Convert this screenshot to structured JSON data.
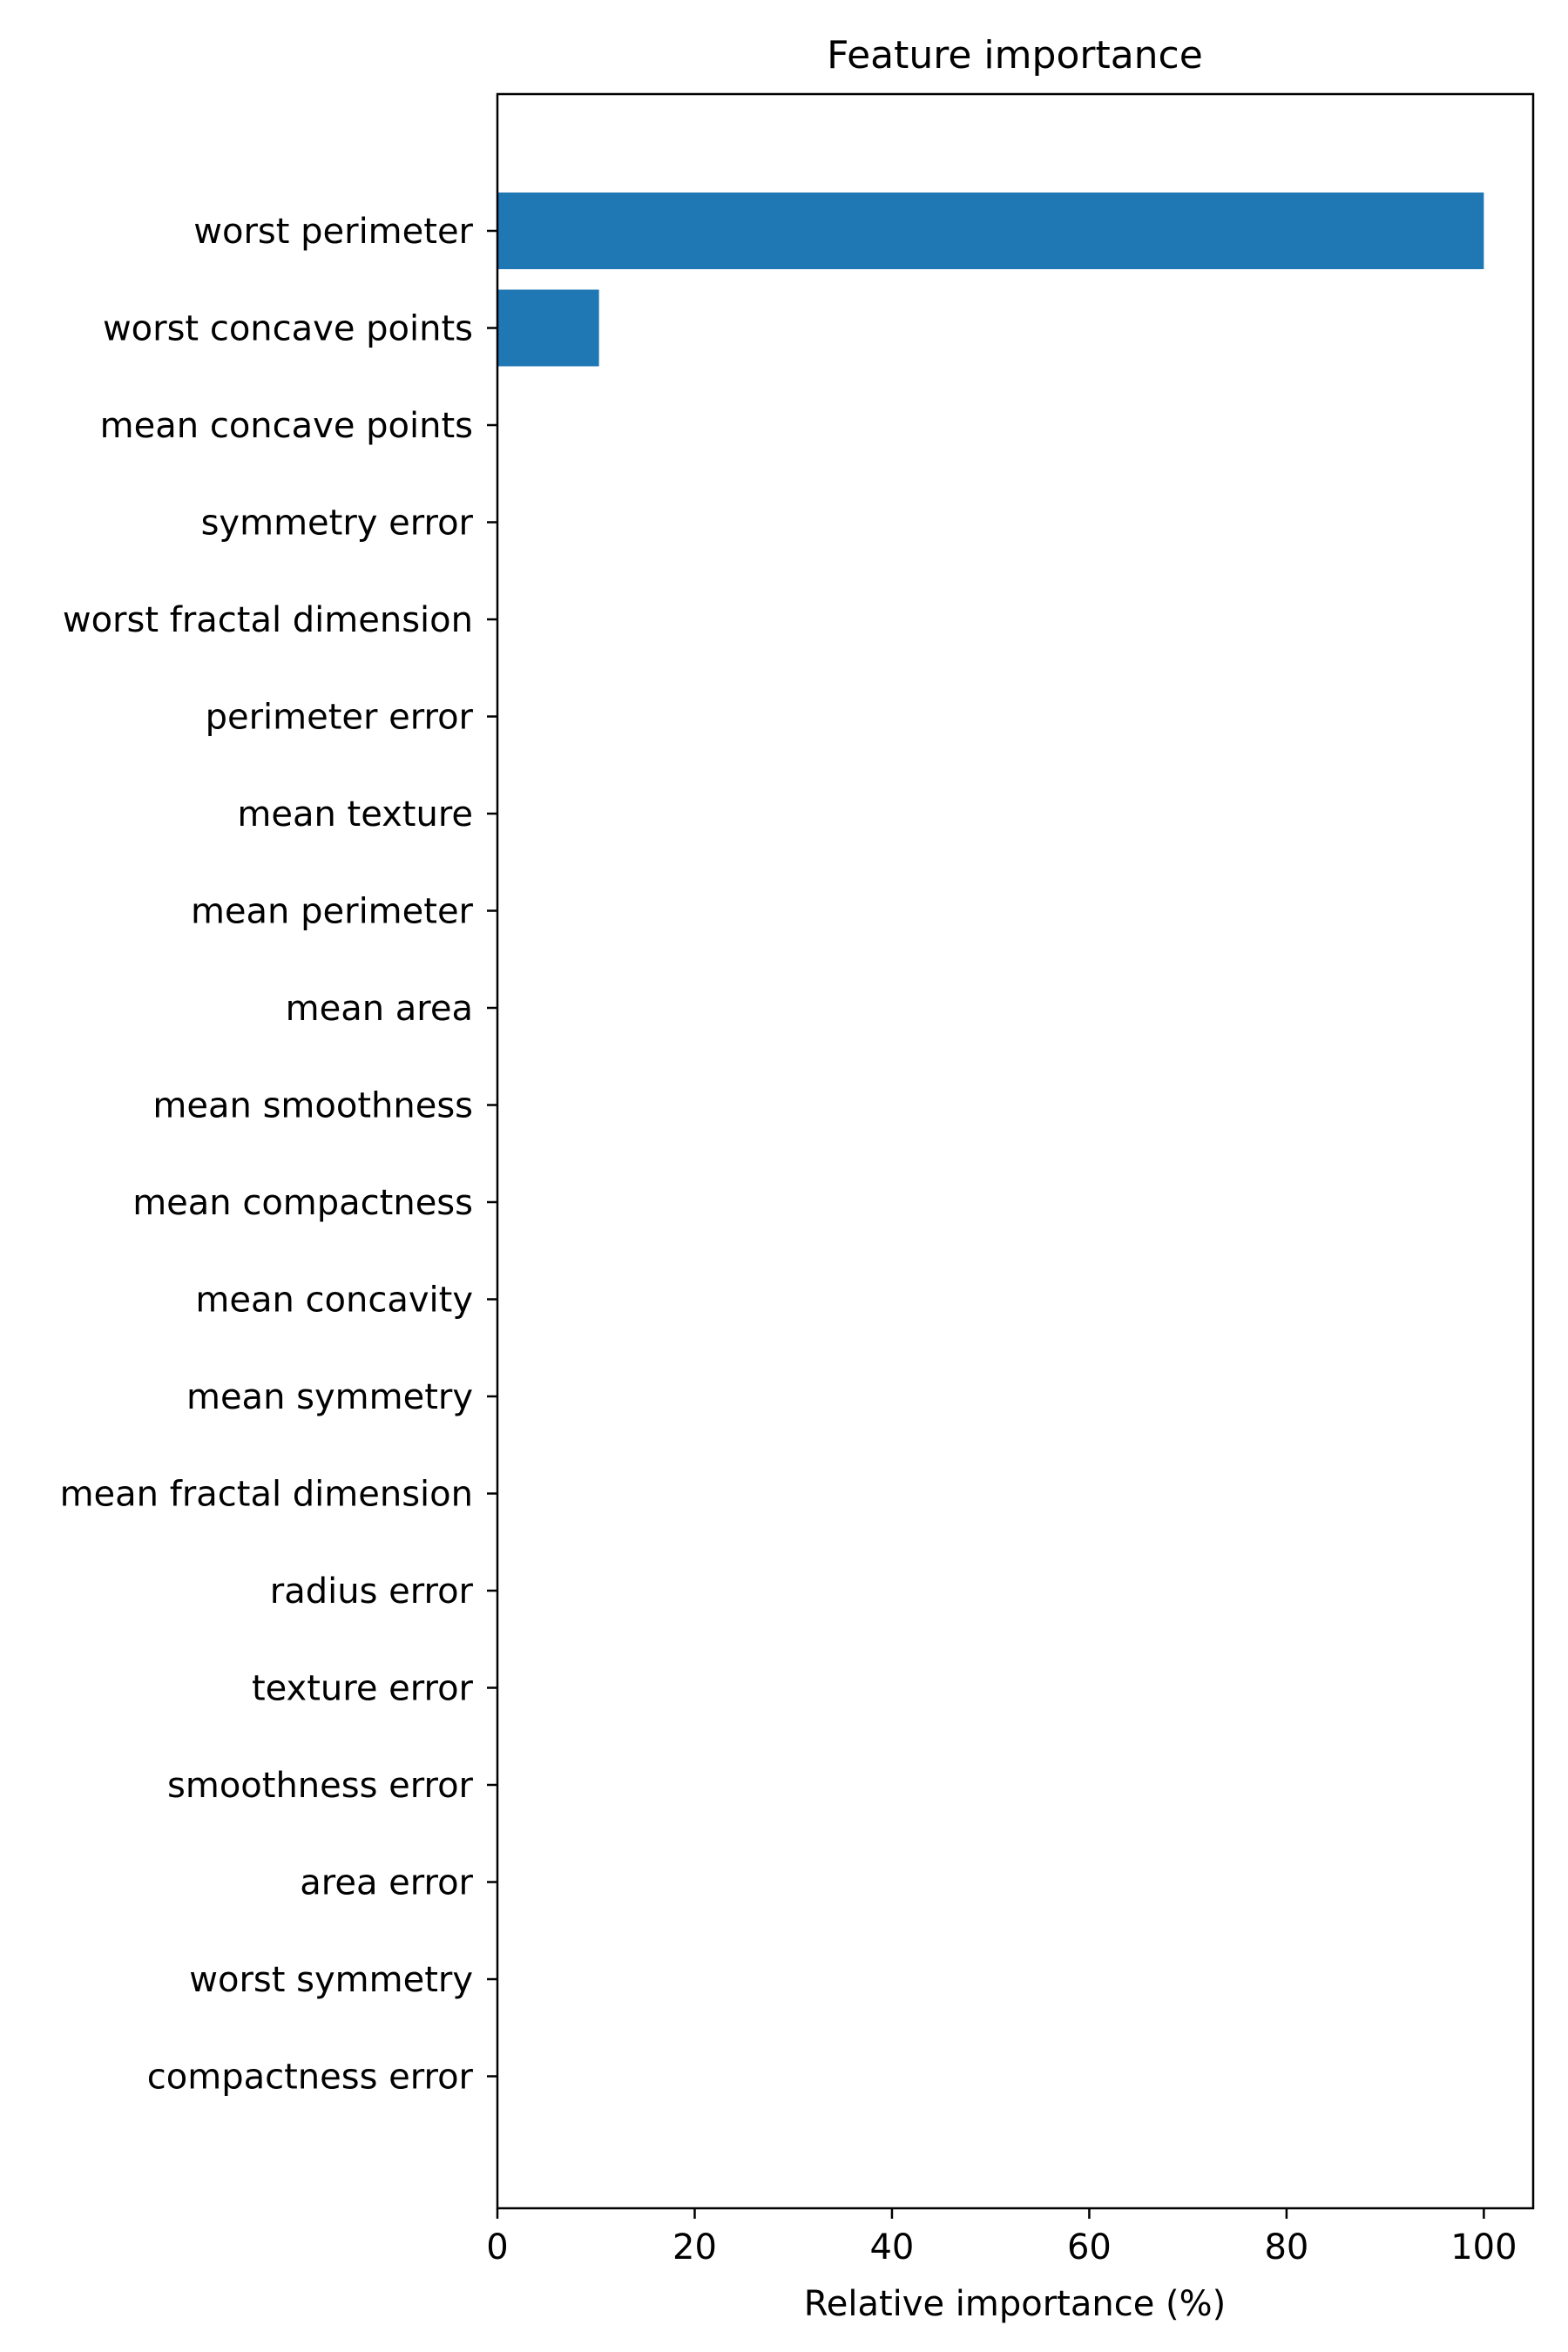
{
  "chart_data": {
    "type": "bar",
    "orientation": "horizontal",
    "title": "Feature importance",
    "xlabel": "Relative importance (%)",
    "ylabel": "",
    "xlim": [
      0,
      105
    ],
    "xticks": [
      0,
      20,
      40,
      60,
      80,
      100
    ],
    "grid": false,
    "categories": [
      "worst perimeter",
      "worst concave points",
      "mean concave points",
      "symmetry error",
      "worst fractal dimension",
      "perimeter error",
      "mean texture",
      "mean perimeter",
      "mean area",
      "mean smoothness",
      "mean compactness",
      "mean concavity",
      "mean symmetry",
      "mean fractal dimension",
      "radius error",
      "texture error",
      "smoothness error",
      "area error",
      "worst symmetry",
      "compactness error"
    ],
    "values": [
      100,
      10.3,
      0,
      0,
      0,
      0,
      0,
      0,
      0,
      0,
      0,
      0,
      0,
      0,
      0,
      0,
      0,
      0,
      0,
      0
    ],
    "bar_color": "#1f77b4"
  }
}
